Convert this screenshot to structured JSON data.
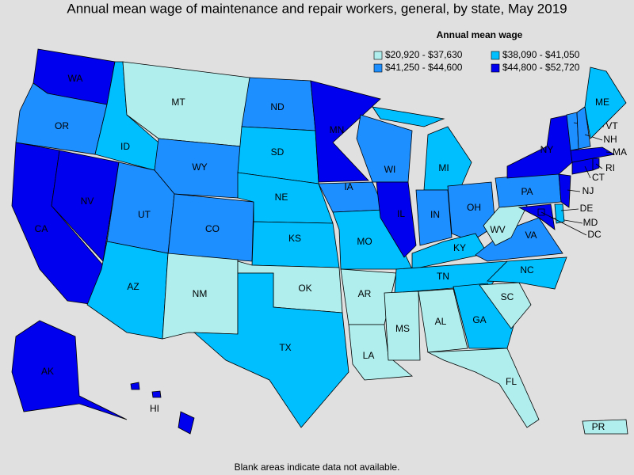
{
  "title": "Annual mean wage of maintenance and repair workers, general, by state, May 2019",
  "legend": {
    "title": "Annual mean wage",
    "items": [
      {
        "label": "$20,920 - $37,630",
        "color": "#b0eeee"
      },
      {
        "label": "$38,090 - $41,050",
        "color": "#00bfff"
      },
      {
        "label": "$41,250 - $44,600",
        "color": "#1e8fff"
      },
      {
        "label": "$44,800 - $52,720",
        "color": "#0000ee"
      }
    ]
  },
  "states": [
    {
      "abbr": "WA",
      "class": 3
    },
    {
      "abbr": "OR",
      "class": 2
    },
    {
      "abbr": "CA",
      "class": 3
    },
    {
      "abbr": "NV",
      "class": 3
    },
    {
      "abbr": "ID",
      "class": 1
    },
    {
      "abbr": "MT",
      "class": 0
    },
    {
      "abbr": "WY",
      "class": 2
    },
    {
      "abbr": "UT",
      "class": 2
    },
    {
      "abbr": "CO",
      "class": 2
    },
    {
      "abbr": "AZ",
      "class": 1
    },
    {
      "abbr": "NM",
      "class": 0
    },
    {
      "abbr": "ND",
      "class": 2
    },
    {
      "abbr": "SD",
      "class": 1
    },
    {
      "abbr": "NE",
      "class": 1
    },
    {
      "abbr": "KS",
      "class": 1
    },
    {
      "abbr": "OK",
      "class": 0
    },
    {
      "abbr": "TX",
      "class": 1
    },
    {
      "abbr": "MN",
      "class": 3
    },
    {
      "abbr": "IA",
      "class": 2
    },
    {
      "abbr": "MO",
      "class": 1
    },
    {
      "abbr": "AR",
      "class": 0
    },
    {
      "abbr": "LA",
      "class": 0
    },
    {
      "abbr": "WI",
      "class": 2
    },
    {
      "abbr": "IL",
      "class": 3
    },
    {
      "abbr": "MI",
      "class": 1
    },
    {
      "abbr": "IN",
      "class": 2
    },
    {
      "abbr": "OH",
      "class": 2
    },
    {
      "abbr": "KY",
      "class": 1
    },
    {
      "abbr": "TN",
      "class": 1
    },
    {
      "abbr": "MS",
      "class": 0
    },
    {
      "abbr": "AL",
      "class": 0
    },
    {
      "abbr": "GA",
      "class": 1
    },
    {
      "abbr": "FL",
      "class": 0
    },
    {
      "abbr": "SC",
      "class": 0
    },
    {
      "abbr": "NC",
      "class": 1
    },
    {
      "abbr": "VA",
      "class": 2
    },
    {
      "abbr": "WV",
      "class": 0
    },
    {
      "abbr": "MD",
      "class": 3
    },
    {
      "abbr": "DE",
      "class": 1
    },
    {
      "abbr": "DC",
      "class": 3
    },
    {
      "abbr": "PA",
      "class": 2
    },
    {
      "abbr": "NJ",
      "class": 3
    },
    {
      "abbr": "NY",
      "class": 3
    },
    {
      "abbr": "CT",
      "class": 3
    },
    {
      "abbr": "RI",
      "class": 3
    },
    {
      "abbr": "MA",
      "class": 3
    },
    {
      "abbr": "VT",
      "class": 2
    },
    {
      "abbr": "NH",
      "class": 2
    },
    {
      "abbr": "ME",
      "class": 1
    },
    {
      "abbr": "AK",
      "class": 3
    },
    {
      "abbr": "HI",
      "class": 3
    },
    {
      "abbr": "PR",
      "class": 0
    }
  ],
  "footnote": "Blank areas indicate data not available."
}
